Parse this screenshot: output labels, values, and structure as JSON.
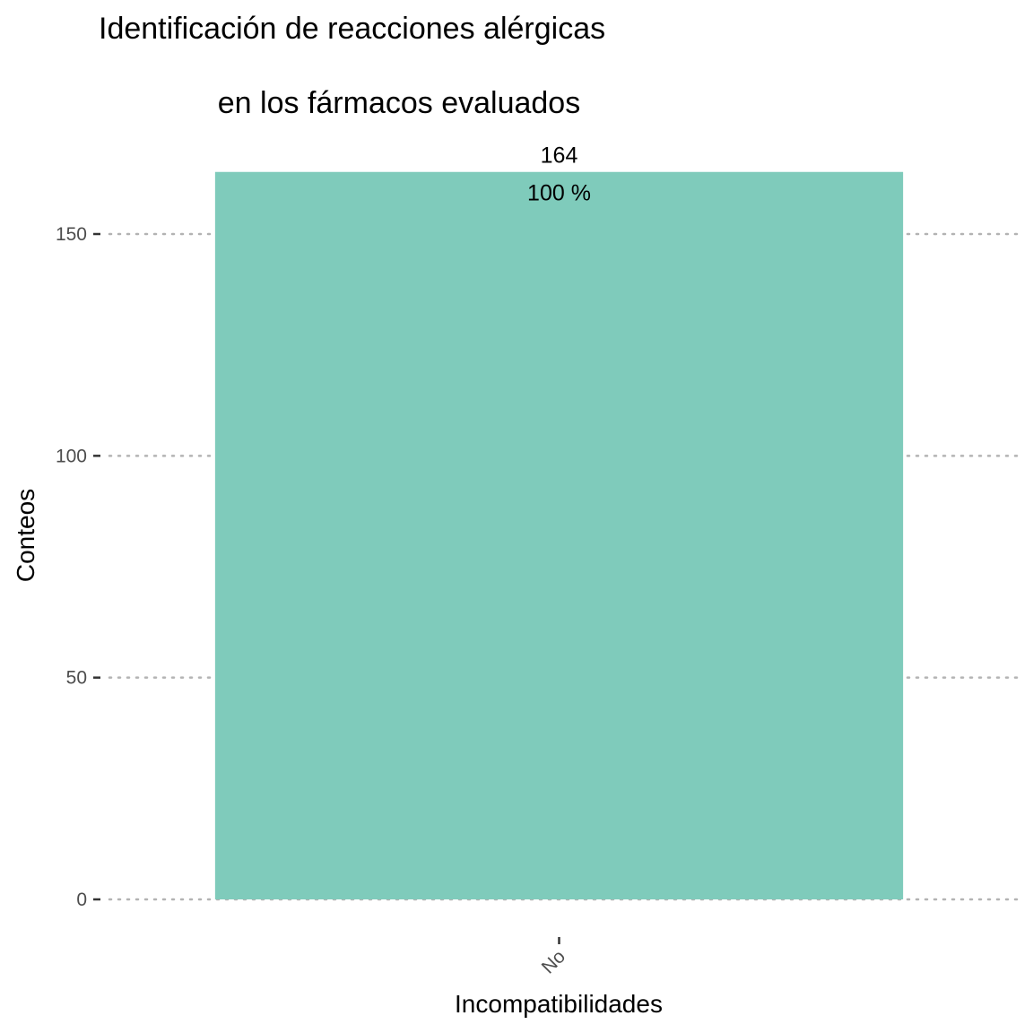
{
  "chart_data": {
    "type": "bar",
    "title_lines": [
      "Identificación de reacciones alérgicas",
      "en los fármacos evaluados"
    ],
    "xlabel": "Incompatibilidades",
    "ylabel": "Conteos",
    "categories": [
      "No"
    ],
    "values": [
      164
    ],
    "count_labels": [
      "164"
    ],
    "percent_labels": [
      "100 %"
    ],
    "ylim": [
      0,
      164
    ],
    "yticks": [
      0,
      50,
      100,
      150
    ],
    "ytick_labels": [
      "0",
      "50",
      "100",
      "150"
    ],
    "grid": "horizontal dotted",
    "bar_color": "#7FCBBB"
  }
}
